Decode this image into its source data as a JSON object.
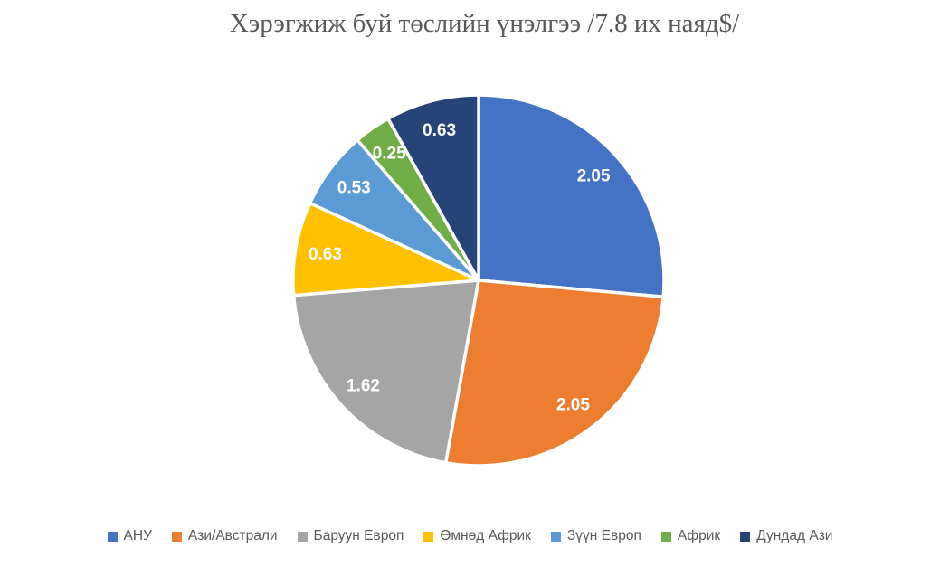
{
  "chart_data": {
    "type": "pie",
    "title": "Хэрэгжиж буй төслийн үнэлгээ /7.8 их наяд$/",
    "categories": [
      "АНУ",
      "Ази/Австрали",
      "Баруун Европ",
      "Өмнөд Африк",
      "Зүүн Европ",
      "Африк",
      "Дундад Ази"
    ],
    "values": [
      2.05,
      2.05,
      1.62,
      0.63,
      0.53,
      0.25,
      0.63
    ],
    "data_labels": [
      "2.05",
      "2.05",
      "1.62",
      "0.63",
      "0.53",
      "0.25",
      "0.63"
    ],
    "colors": [
      "#4472C4",
      "#ED7D31",
      "#A5A5A5",
      "#FFC000",
      "#5B9BD5",
      "#70AD47",
      "#264478"
    ],
    "direction": "clockwise",
    "start_angle_deg": 0,
    "legend_position": "bottom",
    "background_color": "#FFFFFF",
    "separator_color": "#FFFFFF",
    "label_color": "#FFFFFF",
    "title_color": "#595959",
    "legend_text_color": "#595959"
  }
}
